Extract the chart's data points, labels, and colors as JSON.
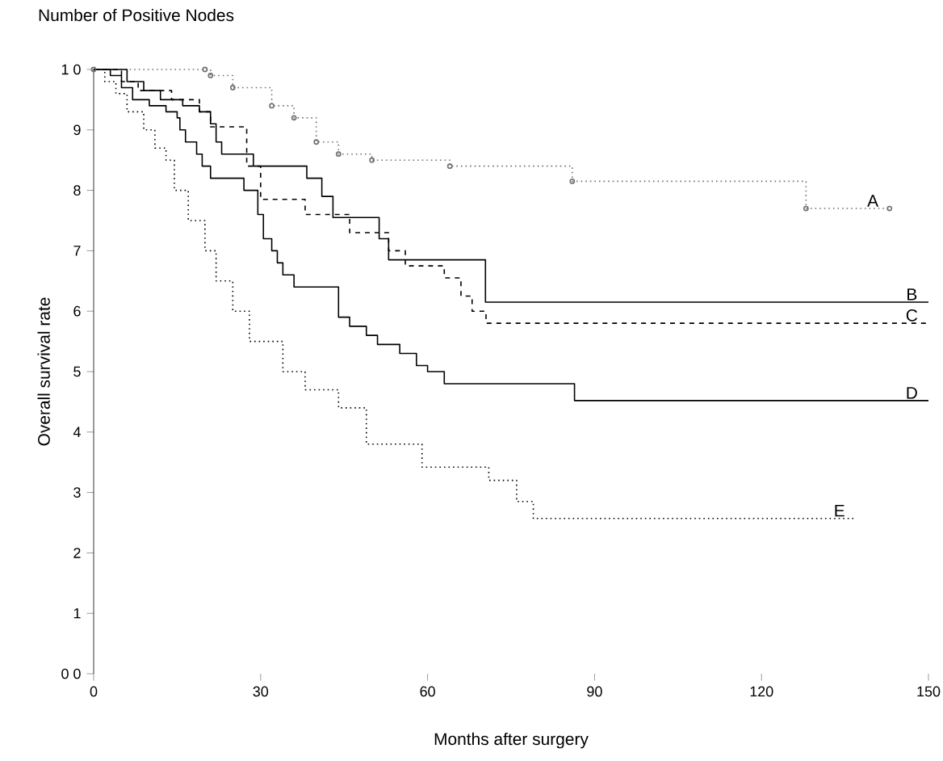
{
  "chart_data": {
    "type": "step",
    "title": "Number of Positive Nodes",
    "xlabel": "Months after surgery",
    "ylabel": "Overall survival rate",
    "xlim": [
      0,
      150
    ],
    "xticks": [
      0,
      30,
      60,
      90,
      120,
      150
    ],
    "ylim": [
      0,
      10
    ],
    "yticks": [
      {
        "value": 0,
        "label": "0 0"
      },
      1,
      2,
      3,
      4,
      5,
      6,
      7,
      8,
      9,
      {
        "value": 10,
        "label": "1 0"
      }
    ],
    "series": [
      {
        "name": "A",
        "color": "#707070",
        "line_style": "dotted",
        "marker": "circle",
        "x": [
          0,
          20,
          21,
          25,
          32,
          36,
          40,
          44,
          50,
          64,
          86,
          128,
          143
        ],
        "values": [
          10.0,
          10.0,
          9.9,
          9.7,
          9.4,
          9.2,
          8.8,
          8.6,
          8.5,
          8.4,
          8.15,
          7.7,
          7.7
        ]
      },
      {
        "name": "B",
        "color": "#000000",
        "line_style": "solid",
        "marker": "none",
        "x": [
          0,
          6,
          9,
          12,
          16,
          19,
          21,
          22,
          23,
          28.7,
          38.3,
          41,
          43,
          51.3,
          53,
          70.4,
          150
        ],
        "values": [
          10.0,
          9.8,
          9.65,
          9.5,
          9.4,
          9.3,
          9.1,
          8.8,
          8.6,
          8.4,
          8.2,
          7.9,
          7.55,
          7.2,
          6.85,
          6.15,
          6.15
        ]
      },
      {
        "name": "C",
        "color": "#000000",
        "line_style": "dashed",
        "marker": "none",
        "x": [
          0,
          5,
          8,
          14,
          19,
          21,
          27.5,
          30,
          38,
          46,
          53,
          56,
          63,
          66,
          68,
          70.5,
          150
        ],
        "values": [
          10.0,
          9.8,
          9.65,
          9.5,
          9.3,
          9.05,
          8.4,
          7.85,
          7.6,
          7.3,
          7.0,
          6.75,
          6.55,
          6.25,
          6.0,
          5.8,
          5.8
        ]
      },
      {
        "name": "D",
        "color": "#000000",
        "line_style": "solid",
        "marker": "none",
        "x": [
          0,
          3,
          5,
          7,
          10,
          13,
          15,
          15.5,
          16.5,
          18.5,
          19.5,
          21,
          27,
          29.5,
          30.5,
          32,
          33,
          34,
          36,
          44,
          46,
          49,
          51,
          55,
          58,
          60,
          63,
          86.4,
          150
        ],
        "values": [
          10.0,
          9.9,
          9.7,
          9.5,
          9.4,
          9.3,
          9.2,
          9.0,
          8.8,
          8.6,
          8.4,
          8.2,
          8.0,
          7.6,
          7.2,
          7.0,
          6.8,
          6.6,
          6.4,
          5.9,
          5.75,
          5.6,
          5.45,
          5.3,
          5.1,
          5.0,
          4.8,
          4.52,
          4.52
        ]
      },
      {
        "name": "E",
        "color": "#000000",
        "line_style": "dotted",
        "marker": "none",
        "x": [
          0,
          2,
          4,
          6,
          9,
          11,
          13,
          14.5,
          17,
          20,
          22,
          25,
          28,
          34,
          38,
          44,
          49,
          59,
          71,
          76,
          79,
          137
        ],
        "values": [
          10.0,
          9.8,
          9.6,
          9.3,
          9.0,
          8.7,
          8.5,
          8.0,
          7.5,
          7.0,
          6.5,
          6.0,
          5.5,
          5.0,
          4.7,
          4.4,
          3.8,
          3.42,
          3.2,
          2.85,
          2.57,
          2.57
        ]
      }
    ]
  }
}
